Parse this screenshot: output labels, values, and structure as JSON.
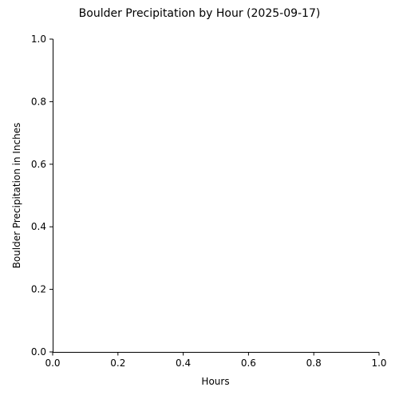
{
  "chart_data": {
    "type": "line",
    "title": "Boulder Precipitation by Hour (2025-09-17)",
    "xlabel": "Hours",
    "ylabel": "Boulder Precipitation in Inches",
    "xlim": [
      0,
      1
    ],
    "ylim": [
      0,
      1
    ],
    "xticks": [
      0.0,
      0.2,
      0.4,
      0.6,
      0.8,
      1.0
    ],
    "yticks": [
      0.0,
      0.2,
      0.4,
      0.6,
      0.8,
      1.0
    ],
    "xtick_labels": [
      "0.0",
      "0.2",
      "0.4",
      "0.6",
      "0.8",
      "1.0"
    ],
    "ytick_labels": [
      "0.0",
      "0.2",
      "0.4",
      "0.6",
      "0.8",
      "1.0"
    ],
    "grid": false,
    "series": [
      {
        "x": [],
        "y": []
      }
    ]
  }
}
